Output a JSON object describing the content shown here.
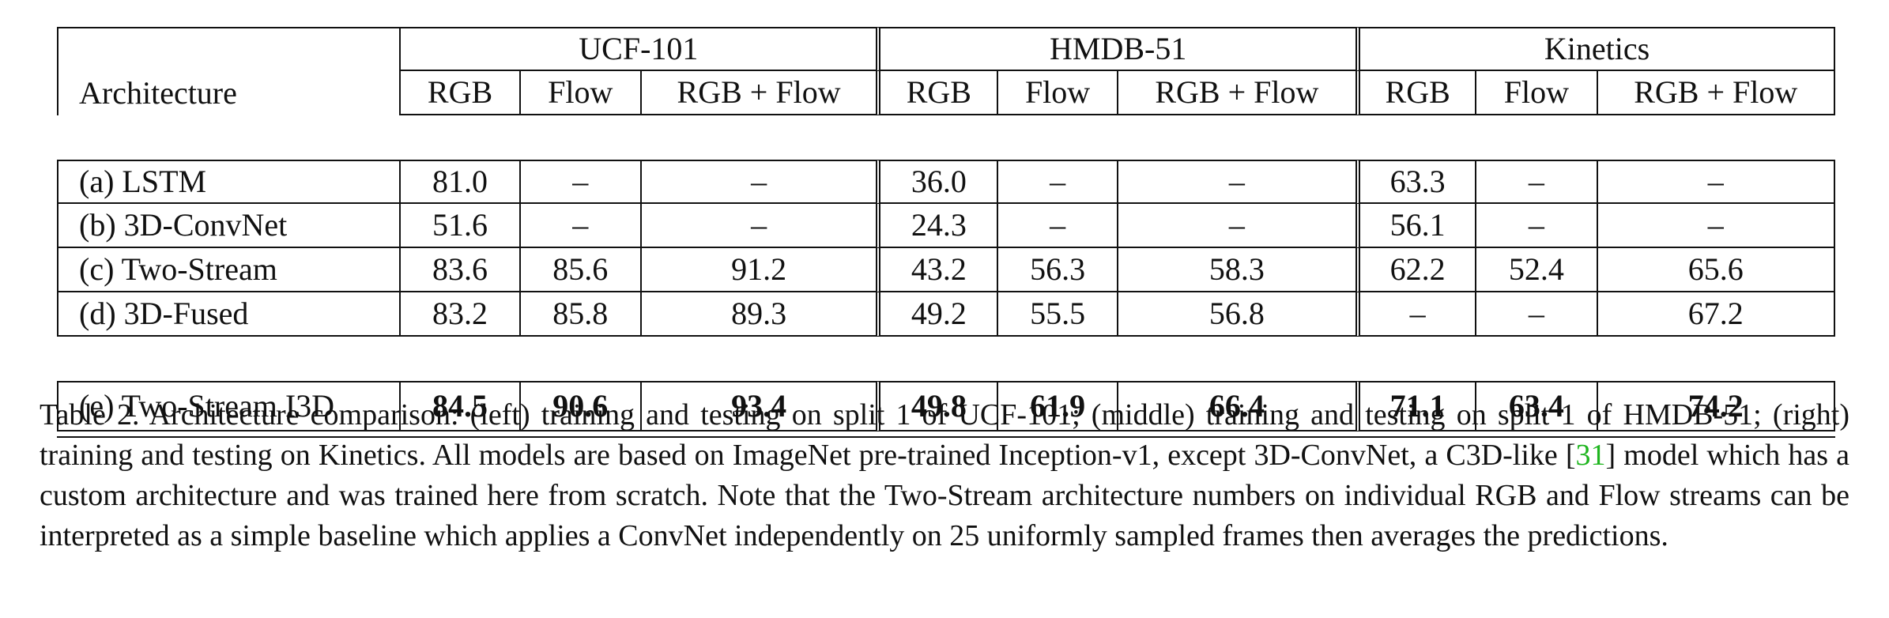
{
  "table": {
    "arch_header": "Architecture",
    "groups": [
      "UCF-101",
      "HMDB-51",
      "Kinetics"
    ],
    "subheaders": [
      "RGB",
      "Flow",
      "RGB + Flow"
    ],
    "rows": [
      {
        "name": "(a) LSTM",
        "cells": [
          "81.0",
          "–",
          "–",
          "36.0",
          "–",
          "–",
          "63.3",
          "–",
          "–"
        ]
      },
      {
        "name": "(b) 3D-ConvNet",
        "cells": [
          "51.6",
          "–",
          "–",
          "24.3",
          "–",
          "–",
          "56.1",
          "–",
          "–"
        ]
      },
      {
        "name": "(c) Two-Stream",
        "cells": [
          "83.6",
          "85.6",
          "91.2",
          "43.2",
          "56.3",
          "58.3",
          "62.2",
          "52.4",
          "65.6"
        ]
      },
      {
        "name": "(d) 3D-Fused",
        "cells": [
          "83.2",
          "85.8",
          "89.3",
          "49.2",
          "55.5",
          "56.8",
          "–",
          "–",
          "67.2"
        ]
      }
    ],
    "best": {
      "name": "(e) Two-Stream I3D",
      "cells": [
        "84.5",
        "90.6",
        "93.4",
        "49.8",
        "61.9",
        "66.4",
        "71.1",
        "63.4",
        "74.2"
      ]
    }
  },
  "caption": {
    "part1": "Table 2. Architecture comparison: (left) training and testing on split 1 of UCF-101; (middle) training and testing on split 1 of HMDB-51; (right) training and testing on Kinetics. All models are based on ImageNet pre-trained Inception-v1, except 3D-ConvNet, a C3D-like [",
    "ref": "31",
    "part2": "] model which has a custom architecture and was trained here from scratch. Note that the Two-Stream architecture numbers on individual RGB and Flow streams can be interpreted as a simple baseline which applies a ConvNet independently on 25 uniformly sampled frames then averages the predictions."
  }
}
